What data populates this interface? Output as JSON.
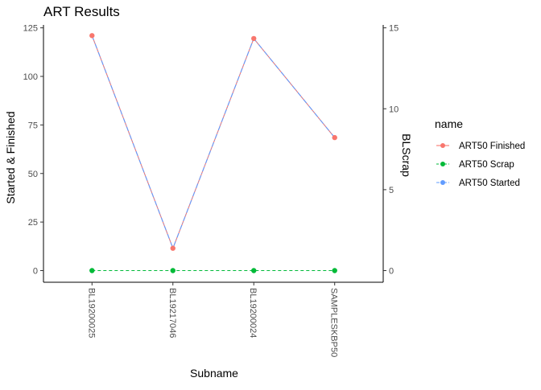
{
  "chart_data": {
    "type": "line",
    "title": "ART Results",
    "xlabel": "Subname",
    "ylabel": "Started & Finished",
    "ylabel_right": "BLScrap",
    "categories": [
      "BL19200025",
      "BL19217046",
      "BL19200024",
      "SAMPLESKBP50"
    ],
    "ylim": [
      -6,
      126.5
    ],
    "y_ticks": [
      0,
      25,
      50,
      75,
      100,
      125
    ],
    "ylim_right": [
      -0.72,
      15.18
    ],
    "y_ticks_right": [
      0,
      5,
      10,
      15
    ],
    "grid": false,
    "legend_position": "right",
    "legend_title": "name",
    "series": [
      {
        "name": "ART50 Finished",
        "axis": "left",
        "values": [
          121,
          11.5,
          119.5,
          68.5
        ],
        "color": "#F8766D",
        "dash": "solid"
      },
      {
        "name": "ART50 Scrap",
        "axis": "right",
        "values": [
          0,
          0,
          0,
          0
        ],
        "color": "#00BA38",
        "dash": "dashed"
      },
      {
        "name": "ART50 Started",
        "axis": "left",
        "values": [
          121,
          11.5,
          119.5,
          68.5
        ],
        "color": "#619CFF",
        "dash": "dashdot"
      }
    ]
  }
}
